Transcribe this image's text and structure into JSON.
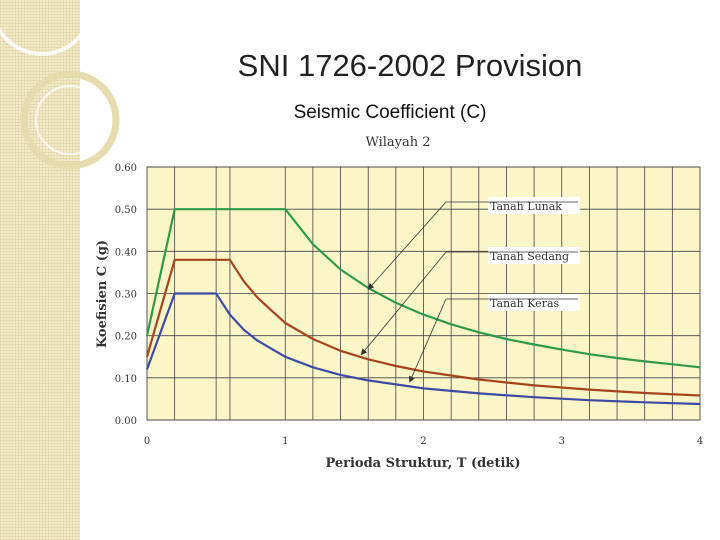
{
  "slide": {
    "title": "SNI 1726-2002 Provision",
    "subtitle": "Seismic Coefficient (C)"
  },
  "colors": {
    "plot_bg": "#fbf6c8",
    "sidebar": "#f2e9c6",
    "soft": "#2f9a4a",
    "medium": "#a4451f",
    "hard": "#3f4aa6"
  },
  "chart_data": {
    "type": "line",
    "title": "Wilayah 2",
    "xlabel": "Perioda Struktur, T  (detik)",
    "ylabel": "Koefisien C  (g)",
    "xlim": [
      0,
      4
    ],
    "ylim": [
      0,
      0.6
    ],
    "x_ticks": [
      "0",
      "1",
      "2",
      "3",
      "4"
    ],
    "y_ticks": [
      "0.00",
      "0.10",
      "0.20",
      "0.30",
      "0.40",
      "0.50",
      "0.60"
    ],
    "vertical_gridlines": [
      0.2,
      0.5,
      0.6,
      1.0,
      1.2,
      1.4,
      1.6,
      1.8,
      2.0,
      2.2,
      2.4,
      2.6,
      2.8,
      3.0,
      3.2,
      3.4,
      3.6,
      3.8
    ],
    "series": [
      {
        "name": "Tanah Lunak",
        "color": "#2f9a4a",
        "x": [
          0,
          0.2,
          1.0,
          1.2,
          1.4,
          1.6,
          1.8,
          2.0,
          2.2,
          2.4,
          2.6,
          2.8,
          3.0,
          3.2,
          3.4,
          3.6,
          3.8,
          4.0
        ],
        "y": [
          0.2,
          0.5,
          0.5,
          0.417,
          0.357,
          0.313,
          0.278,
          0.25,
          0.227,
          0.208,
          0.192,
          0.179,
          0.167,
          0.156,
          0.147,
          0.139,
          0.132,
          0.125
        ]
      },
      {
        "name": "Tanah Sedang",
        "color": "#a4451f",
        "x": [
          0,
          0.2,
          0.6,
          0.7,
          0.8,
          0.9,
          1.0,
          1.2,
          1.4,
          1.6,
          1.8,
          2.0,
          2.4,
          2.8,
          3.2,
          3.6,
          4.0
        ],
        "y": [
          0.15,
          0.38,
          0.38,
          0.329,
          0.29,
          0.26,
          0.23,
          0.192,
          0.164,
          0.144,
          0.128,
          0.115,
          0.096,
          0.082,
          0.072,
          0.064,
          0.058
        ]
      },
      {
        "name": "Tanah Keras",
        "color": "#3f4aa6",
        "x": [
          0,
          0.2,
          0.5,
          0.6,
          0.7,
          0.8,
          1.0,
          1.2,
          1.4,
          1.6,
          2.0,
          2.4,
          2.8,
          3.2,
          3.6,
          4.0
        ],
        "y": [
          0.12,
          0.3,
          0.3,
          0.25,
          0.214,
          0.188,
          0.15,
          0.125,
          0.107,
          0.094,
          0.075,
          0.063,
          0.054,
          0.047,
          0.042,
          0.038
        ]
      }
    ],
    "annotations": [
      {
        "label": "Tanah Lunak",
        "target_x": 1.6,
        "target_y": 0.31
      },
      {
        "label": "Tanah Sedang",
        "target_x": 1.55,
        "target_y": 0.155
      },
      {
        "label": "Tanah Keras",
        "target_x": 1.9,
        "target_y": 0.09
      }
    ]
  }
}
